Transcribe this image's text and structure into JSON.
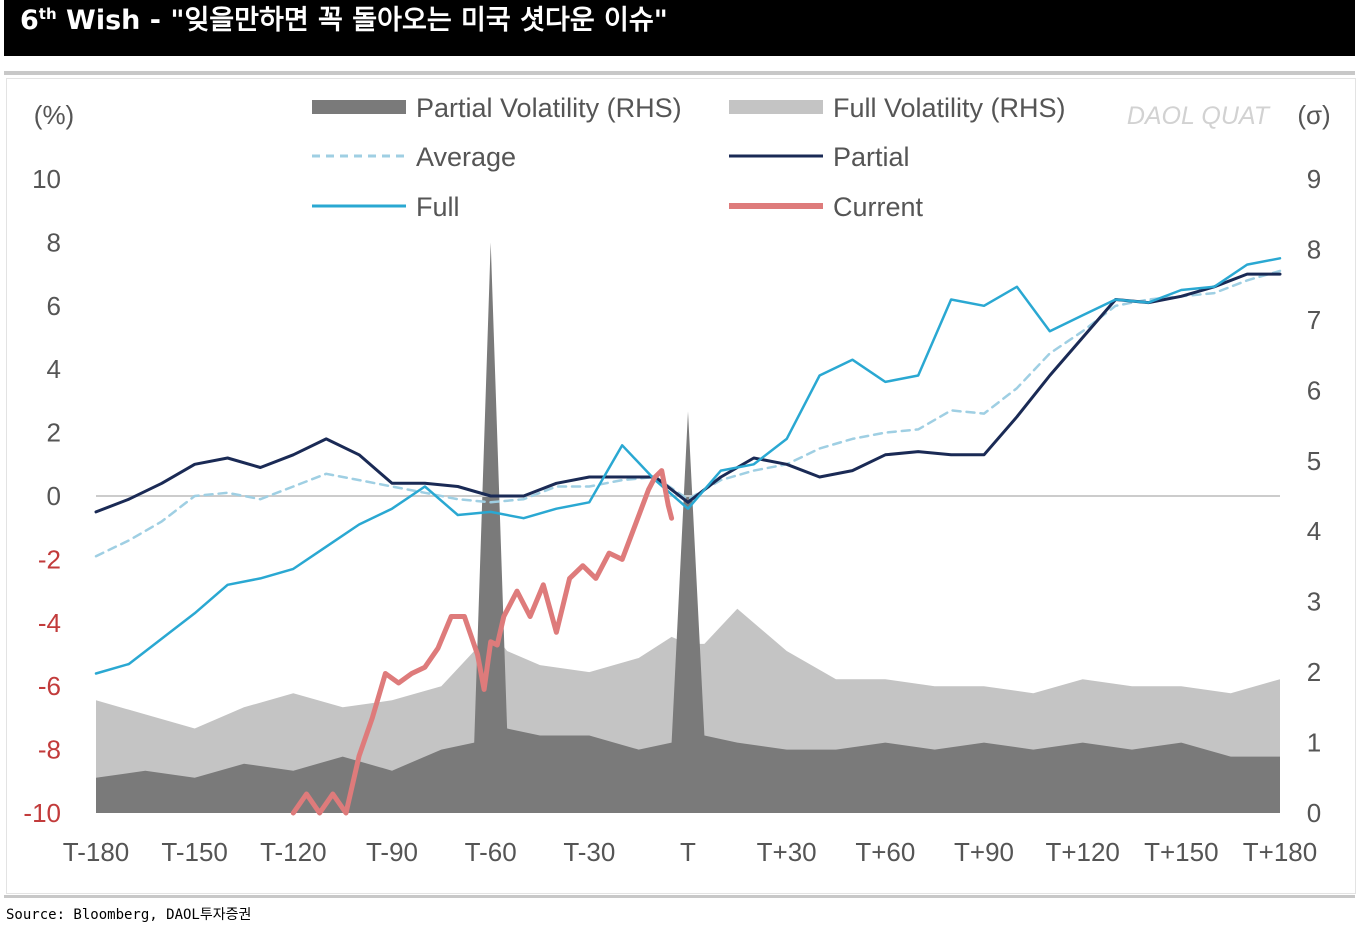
{
  "header": {
    "title_main": "6",
    "title_sup": "th",
    "title_rest": " Wish - \"잊을만하면 꼭 돌아오는 미국 셧다운 이슈\""
  },
  "watermark": "DAOL QUAT",
  "source": "Source: Bloomberg, DAOL투자증권",
  "colors": {
    "partial_vol": "#7a7a7a",
    "full_vol": "#c4c4c4",
    "average": "#9fcfe3",
    "partial": "#1a2a55",
    "full": "#2aa8d2",
    "current": "#de7b7b",
    "zero_line": "#cccccc"
  },
  "chart_data": {
    "type": "line",
    "left_axis": {
      "unit_label": "(%)",
      "ticks": [
        "10",
        "8",
        "6",
        "4",
        "2",
        "0",
        "-2",
        "-4",
        "-6",
        "-8",
        "-10"
      ],
      "range": [
        -10,
        10
      ]
    },
    "right_axis": {
      "unit_label": "(σ)",
      "ticks": [
        "9",
        "8",
        "7",
        "6",
        "5",
        "4",
        "3",
        "2",
        "1",
        "0"
      ],
      "range": [
        0,
        9
      ]
    },
    "x_axis": {
      "ticks": [
        "T-180",
        "T-150",
        "T-120",
        "T-90",
        "T-60",
        "T-30",
        "T",
        "T+30",
        "T+60",
        "T+90",
        "T+120",
        "T+150",
        "T+180"
      ],
      "range": [
        -180,
        180
      ]
    },
    "legend": [
      {
        "key": "partial_vol",
        "label": "Partial Volatility (RHS)",
        "style": "bar"
      },
      {
        "key": "full_vol",
        "label": "Full Volatility (RHS)",
        "style": "bar"
      },
      {
        "key": "average",
        "label": "Average",
        "style": "dashed"
      },
      {
        "key": "partial",
        "label": "Partial",
        "style": "line"
      },
      {
        "key": "full",
        "label": "Full",
        "style": "line"
      },
      {
        "key": "current",
        "label": "Current",
        "style": "thick"
      }
    ],
    "series": [
      {
        "name": "Full",
        "key": "full",
        "axis": "left",
        "x": [
          -180,
          -170,
          -160,
          -150,
          -140,
          -130,
          -120,
          -110,
          -100,
          -90,
          -80,
          -70,
          -60,
          -50,
          -40,
          -30,
          -20,
          -10,
          0,
          10,
          20,
          30,
          40,
          50,
          60,
          70,
          80,
          90,
          100,
          110,
          120,
          130,
          140,
          150,
          160,
          170,
          180
        ],
        "values": [
          -5.6,
          -5.3,
          -4.5,
          -3.7,
          -2.8,
          -2.6,
          -2.3,
          -1.6,
          -0.9,
          -0.4,
          0.3,
          -0.6,
          -0.5,
          -0.7,
          -0.4,
          -0.2,
          1.6,
          0.5,
          -0.4,
          0.8,
          1.0,
          1.8,
          3.8,
          4.3,
          3.6,
          3.8,
          6.2,
          6.0,
          6.6,
          5.2,
          5.7,
          6.2,
          6.1,
          6.5,
          6.6,
          7.3,
          7.5
        ]
      },
      {
        "name": "Partial",
        "key": "partial",
        "axis": "left",
        "x": [
          -180,
          -170,
          -160,
          -150,
          -140,
          -130,
          -120,
          -110,
          -100,
          -90,
          -80,
          -70,
          -60,
          -50,
          -40,
          -30,
          -20,
          -10,
          0,
          10,
          20,
          30,
          40,
          50,
          60,
          70,
          80,
          90,
          100,
          110,
          120,
          130,
          140,
          150,
          160,
          170,
          180
        ],
        "values": [
          -0.5,
          -0.1,
          0.4,
          1.0,
          1.2,
          0.9,
          1.3,
          1.8,
          1.3,
          0.4,
          0.4,
          0.3,
          0.0,
          0.0,
          0.4,
          0.6,
          0.6,
          0.6,
          -0.2,
          0.6,
          1.2,
          1.0,
          0.6,
          0.8,
          1.3,
          1.4,
          1.3,
          1.3,
          2.5,
          3.8,
          5.0,
          6.2,
          6.1,
          6.3,
          6.6,
          7.0,
          7.0
        ]
      },
      {
        "name": "Average",
        "key": "average",
        "axis": "left",
        "x": [
          -180,
          -170,
          -160,
          -150,
          -140,
          -130,
          -120,
          -110,
          -100,
          -90,
          -80,
          -70,
          -60,
          -50,
          -40,
          -30,
          -20,
          -10,
          0,
          10,
          20,
          30,
          40,
          50,
          60,
          70,
          80,
          90,
          100,
          110,
          120,
          130,
          140,
          150,
          160,
          170,
          180
        ],
        "values": [
          -1.9,
          -1.4,
          -0.8,
          0.0,
          0.1,
          -0.1,
          0.3,
          0.7,
          0.5,
          0.3,
          0.1,
          -0.1,
          -0.2,
          -0.1,
          0.3,
          0.3,
          0.5,
          0.6,
          -0.1,
          0.5,
          0.8,
          1.0,
          1.5,
          1.8,
          2.0,
          2.1,
          2.7,
          2.6,
          3.4,
          4.5,
          5.2,
          6.0,
          6.2,
          6.3,
          6.4,
          6.8,
          7.1
        ]
      },
      {
        "name": "Current",
        "key": "current",
        "axis": "left",
        "x": [
          -120,
          -116,
          -112,
          -108,
          -104,
          -100,
          -96,
          -92,
          -88,
          -84,
          -80,
          -76,
          -72,
          -68,
          -64,
          -62,
          -60,
          -58,
          -56,
          -52,
          -48,
          -44,
          -40,
          -36,
          -32,
          -28,
          -24,
          -20,
          -16,
          -12,
          -10,
          -8,
          -6,
          -5
        ],
        "values": [
          -10.0,
          -9.4,
          -10.0,
          -9.4,
          -10.0,
          -8.2,
          -7.0,
          -5.6,
          -5.9,
          -5.6,
          -5.4,
          -4.8,
          -3.8,
          -3.8,
          -5.0,
          -6.1,
          -4.6,
          -4.7,
          -3.8,
          -3.0,
          -3.8,
          -2.8,
          -4.3,
          -2.6,
          -2.2,
          -2.6,
          -1.8,
          -2.0,
          -0.9,
          0.2,
          0.6,
          0.8,
          -0.3,
          -0.7
        ]
      },
      {
        "name": "Partial Volatility (RHS)",
        "key": "partial_vol",
        "axis": "right",
        "x": [
          -180,
          -165,
          -150,
          -135,
          -120,
          -105,
          -90,
          -75,
          -65,
          -60,
          -55,
          -45,
          -30,
          -15,
          -5,
          0,
          5,
          15,
          30,
          45,
          60,
          75,
          90,
          105,
          120,
          135,
          150,
          165,
          180
        ],
        "values": [
          0.5,
          0.6,
          0.5,
          0.7,
          0.6,
          0.8,
          0.6,
          0.9,
          1.0,
          8.1,
          1.2,
          1.1,
          1.1,
          0.9,
          1.0,
          5.7,
          1.1,
          1.0,
          0.9,
          0.9,
          1.0,
          0.9,
          1.0,
          0.9,
          1.0,
          0.9,
          1.0,
          0.8,
          0.8
        ]
      },
      {
        "name": "Full Volatility (RHS)",
        "key": "full_vol",
        "axis": "right",
        "x": [
          -180,
          -165,
          -150,
          -135,
          -120,
          -105,
          -90,
          -75,
          -65,
          -60,
          -55,
          -45,
          -30,
          -15,
          -5,
          0,
          5,
          15,
          30,
          45,
          60,
          75,
          90,
          105,
          120,
          135,
          150,
          165,
          180
        ],
        "values": [
          1.6,
          1.4,
          1.2,
          1.5,
          1.7,
          1.5,
          1.6,
          1.8,
          2.3,
          2.6,
          2.3,
          2.1,
          2.0,
          2.2,
          2.5,
          2.4,
          2.4,
          2.9,
          2.3,
          1.9,
          1.9,
          1.8,
          1.8,
          1.7,
          1.9,
          1.8,
          1.8,
          1.7,
          1.9
        ]
      }
    ]
  }
}
